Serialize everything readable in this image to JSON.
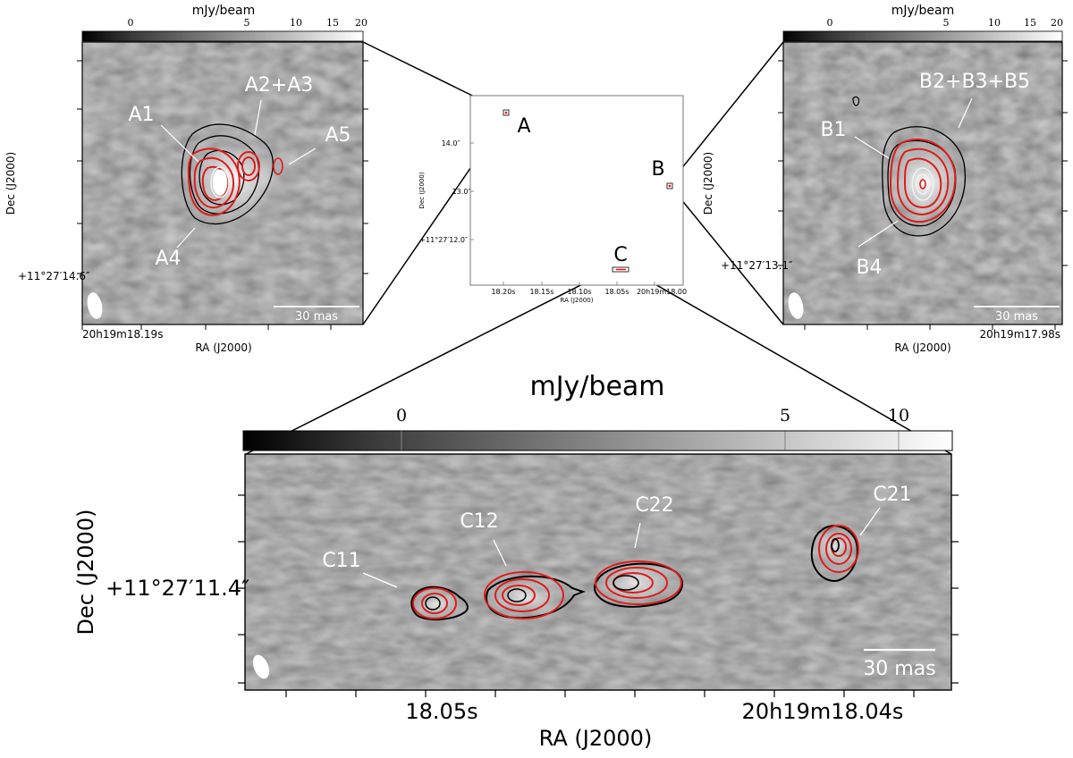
{
  "colors": {
    "background": "#ffffff",
    "contour_black": "#000000",
    "contour_red": "#e01b1b",
    "label_white": "#ffffff",
    "frame": "#000000",
    "marker_red": "#ff0000"
  },
  "panels": {
    "A": {
      "colorbar": {
        "unit": "mJy/beam",
        "ticks": [
          "0",
          "5",
          "10",
          "15",
          "20"
        ]
      },
      "ylabel": "Dec (J2000)",
      "xlabel": "RA (J2000)",
      "ytick_label": "+11°27′14.6″",
      "xtick_label": "20h19m18.19s",
      "scalebar": "30 mas",
      "components": [
        "A1",
        "A2+A3",
        "A5",
        "A4"
      ]
    },
    "B": {
      "colorbar": {
        "unit": "mJy/beam",
        "ticks": [
          "0",
          "5",
          "10",
          "15",
          "20"
        ]
      },
      "ylabel": "Dec (J2000)",
      "xlabel": "RA (J2000)",
      "ytick_label": "+11°27′13.1″",
      "xtick_label": "20h19m17.98s",
      "scalebar": "30 mas",
      "components": [
        "B2+B3+B5",
        "B1",
        "B4"
      ]
    },
    "C": {
      "colorbar": {
        "unit": "mJy/beam",
        "ticks": [
          "0",
          "5",
          "10"
        ]
      },
      "ylabel": "Dec (J2000)",
      "xlabel": "RA (J2000)",
      "ytick_label": "+11°27′11.4″",
      "xtick_labels": [
        "18.05s",
        "20h19m18.04s"
      ],
      "scalebar": "30 mas",
      "components": [
        "C11",
        "C12",
        "C22",
        "C21"
      ]
    },
    "overview": {
      "ylabel": "Dec (J2000)",
      "xlabel": "RA (J2000)",
      "yticks": [
        "14.0″",
        "13.0″",
        "+11°27′12.0″"
      ],
      "xticks": [
        "18.20s",
        "18.15s",
        "18.10s",
        "18.05s",
        "20h19m18.00"
      ],
      "region_labels": [
        "A",
        "B",
        "C"
      ]
    }
  }
}
